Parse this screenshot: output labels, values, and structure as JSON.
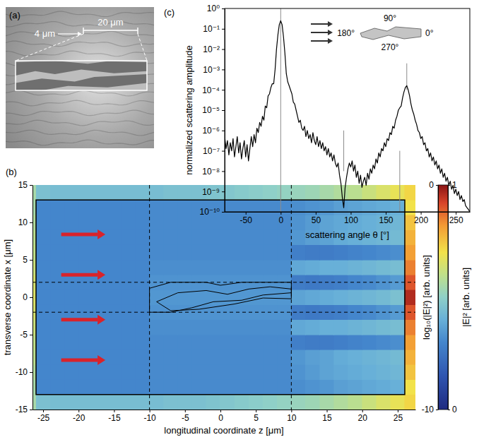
{
  "chart_data": [
    {
      "type": "image",
      "label": "(a)",
      "annotations": [
        "4 μm",
        "20 μm"
      ]
    },
    {
      "type": "heatmap",
      "label": "(b)",
      "xlabel": "longitudinal coordinate z [μm]",
      "ylabel": "transverse coordinate x [μm]",
      "xlim": [
        -26.5,
        27.5
      ],
      "ylim": [
        -15,
        15
      ],
      "xticks": [
        -25,
        -20,
        -15,
        -10,
        -5,
        0,
        5,
        10,
        15,
        20,
        25
      ],
      "yticks": [
        -15,
        -10,
        -5,
        0,
        5,
        10,
        15
      ],
      "x": [
        -27,
        -25,
        -23,
        -21,
        -19,
        -17,
        -15,
        -13,
        -11,
        -9,
        -7,
        -5,
        -3,
        -1,
        1,
        3,
        5,
        7,
        9,
        11,
        13,
        15,
        17,
        19,
        21,
        23,
        25,
        27
      ],
      "y": [
        -14,
        -12,
        -10,
        -8,
        -6,
        -4,
        -2,
        0,
        2,
        4,
        6,
        8,
        10,
        12,
        14
      ],
      "values": [
        [
          -4.5,
          -5.5,
          -5.6,
          -5.6,
          -5.6,
          -5.6,
          -5.6,
          -5.6,
          -5.6,
          -5.6,
          -5.5,
          -5.5,
          -5.5,
          -5.4,
          -5.3,
          -5.2,
          -5.1,
          -5,
          -4.9,
          -4.8,
          -4.7,
          -4.5,
          -4.3,
          -4.1,
          -3.8,
          -3.5,
          -3.2,
          -2.8
        ],
        [
          -4.5,
          -7,
          -7,
          -7,
          -7,
          -7,
          -7,
          -7,
          -7,
          -6.9,
          -6.9,
          -6.9,
          -6.9,
          -6.9,
          -6.9,
          -6.9,
          -6.9,
          -6.9,
          -6.9,
          -6.8,
          -6.7,
          -6.6,
          -6.4,
          -6.3,
          -6.2,
          -6.1,
          -6,
          -3
        ],
        [
          -4.3,
          -7,
          -7,
          -7,
          -7,
          -7,
          -7,
          -7,
          -7,
          -6.9,
          -6.9,
          -6.9,
          -6.9,
          -6.9,
          -6.9,
          -6.9,
          -6.9,
          -6.9,
          -6.9,
          -6.7,
          -6.5,
          -6.3,
          -6.2,
          -6.1,
          -6,
          -5.9,
          -5.8,
          -2.5
        ],
        [
          -4.1,
          -7,
          -7,
          -7,
          -7,
          -7,
          -7,
          -7,
          -7,
          -6.9,
          -6.9,
          -6.9,
          -6.9,
          -6.9,
          -6.9,
          -6.9,
          -6.9,
          -6.9,
          -6.9,
          -6.6,
          -6.4,
          -6.3,
          -6.1,
          -6,
          -5.9,
          -5.8,
          -5.7,
          -2.2
        ],
        [
          -4,
          -7,
          -7,
          -7,
          -7,
          -7,
          -7,
          -7,
          -7,
          -6.9,
          -6.9,
          -6.9,
          -6.9,
          -6.9,
          -6.9,
          -6.9,
          -6.9,
          -6.9,
          -6.9,
          -7.2,
          -7.3,
          -7.3,
          -7.2,
          -7.1,
          -7,
          -6.9,
          -6.8,
          -1.9
        ],
        [
          -3.8,
          -7,
          -7,
          -7,
          -7,
          -7,
          -7,
          -7,
          -7,
          -6.8,
          -6.8,
          -6.8,
          -6.8,
          -6.8,
          -6.8,
          -6.8,
          -6.8,
          -6.8,
          -6.8,
          -6.2,
          -6.1,
          -6,
          -6,
          -5.9,
          -5.8,
          -5.7,
          -5.6,
          -1.5
        ],
        [
          -3.6,
          -7,
          -7,
          -7,
          -7,
          -7,
          -7,
          -7,
          -7,
          -6.7,
          -6.7,
          -6.7,
          -6.7,
          -6.7,
          -6.7,
          -6.7,
          -6.7,
          -6.7,
          -6.7,
          -7.3,
          -7.4,
          -7.3,
          -7.2,
          -7,
          -6.9,
          -6.7,
          -6.5,
          -1
        ],
        [
          -3.5,
          -7,
          -7,
          -7,
          -7,
          -7,
          -7,
          -7,
          -7,
          -6.6,
          -6.6,
          -6.6,
          -6.6,
          -6.6,
          -6.6,
          -6.6,
          -6.6,
          -6.6,
          -6.6,
          -6.3,
          -6.2,
          -6.1,
          -6,
          -5.9,
          -5.8,
          -5.7,
          -5.5,
          -0.4
        ],
        [
          -3.6,
          -7,
          -7,
          -7,
          -7,
          -7,
          -7,
          -7,
          -7,
          -6.7,
          -6.7,
          -6.7,
          -6.7,
          -6.7,
          -6.7,
          -6.7,
          -6.7,
          -6.7,
          -6.7,
          -7.3,
          -7.4,
          -7.3,
          -7.2,
          -7,
          -6.9,
          -6.7,
          -6.5,
          -1
        ],
        [
          -3.8,
          -7,
          -7,
          -7,
          -7,
          -7,
          -7,
          -7,
          -7,
          -6.8,
          -6.8,
          -6.8,
          -6.8,
          -6.8,
          -6.8,
          -6.8,
          -6.8,
          -6.8,
          -6.8,
          -6.2,
          -6.1,
          -6,
          -6,
          -5.9,
          -5.8,
          -5.7,
          -5.6,
          -1.5
        ],
        [
          -4,
          -7,
          -7,
          -7,
          -7,
          -7,
          -7,
          -7,
          -7,
          -6.9,
          -6.9,
          -6.9,
          -6.9,
          -6.9,
          -6.9,
          -6.9,
          -6.9,
          -6.9,
          -6.9,
          -7.2,
          -7.3,
          -7.3,
          -7.2,
          -7.1,
          -7,
          -6.9,
          -6.8,
          -1.9
        ],
        [
          -4.1,
          -7,
          -7,
          -7,
          -7,
          -7,
          -7,
          -7,
          -7,
          -6.9,
          -6.9,
          -6.9,
          -6.9,
          -6.9,
          -6.9,
          -6.9,
          -6.9,
          -6.9,
          -6.9,
          -6.6,
          -6.4,
          -6.3,
          -6.1,
          -6,
          -5.9,
          -5.8,
          -5.7,
          -2.2
        ],
        [
          -4.3,
          -7,
          -7,
          -7,
          -7,
          -7,
          -7,
          -7,
          -7,
          -6.9,
          -6.9,
          -6.9,
          -6.9,
          -6.9,
          -6.9,
          -6.9,
          -6.9,
          -6.9,
          -6.9,
          -6.7,
          -6.5,
          -6.3,
          -6.2,
          -6.1,
          -6,
          -5.9,
          -5.8,
          -2.5
        ],
        [
          -4.5,
          -7,
          -7,
          -7,
          -7,
          -7,
          -7,
          -7,
          -7,
          -6.9,
          -6.9,
          -6.9,
          -6.9,
          -6.9,
          -6.9,
          -6.9,
          -6.9,
          -6.9,
          -6.9,
          -6.8,
          -6.7,
          -6.6,
          -6.4,
          -6.3,
          -6.2,
          -6.1,
          -6,
          -3
        ],
        [
          -4.5,
          -5.5,
          -5.6,
          -5.6,
          -5.6,
          -5.6,
          -5.6,
          -5.6,
          -5.6,
          -5.6,
          -5.5,
          -5.5,
          -5.5,
          -5.4,
          -5.3,
          -5.2,
          -5.1,
          -5,
          -4.9,
          -4.8,
          -4.7,
          -4.5,
          -4.3,
          -4.1,
          -3.8,
          -3.5,
          -3.2,
          -2.8
        ]
      ],
      "colorbar": {
        "label": "log₁₀(|E|²) [arb. units]",
        "range": [
          -10,
          0
        ],
        "ticks": [
          -10,
          0
        ]
      },
      "colorbar2": {
        "label": "|E|² [arb. units]",
        "range": [
          0,
          1
        ],
        "ticks": [
          0,
          1
        ]
      },
      "box": {
        "x": [
          -26,
          26
        ],
        "y": [
          -13,
          13
        ]
      },
      "guide_lines": {
        "x": [
          -10,
          10
        ],
        "y": [
          -2,
          2
        ]
      },
      "outlines": [
        [
          [
            -10,
            -2
          ],
          [
            -10,
            1.2
          ],
          [
            -7,
            2
          ],
          [
            -2,
            2
          ],
          [
            0,
            1.6
          ],
          [
            3,
            2
          ],
          [
            10,
            2
          ],
          [
            10,
            0.6
          ],
          [
            6,
            0.3
          ],
          [
            3,
            -0.4
          ],
          [
            -1,
            -0.6
          ],
          [
            -4,
            -1.4
          ],
          [
            -7,
            -2
          ]
        ],
        [
          [
            -9,
            -0.6
          ],
          [
            -6,
            0.6
          ],
          [
            -2,
            0.9
          ],
          [
            1,
            0.4
          ],
          [
            4,
            1.1
          ],
          [
            7,
            1.4
          ],
          [
            10,
            1.1
          ],
          [
            10,
            -0.2
          ],
          [
            6,
            -0.1
          ],
          [
            2,
            -0.9
          ],
          [
            -3,
            -1.6
          ],
          [
            -7,
            -1.8
          ]
        ]
      ]
    },
    {
      "type": "line",
      "label": "(c)",
      "xlabel": "scattering angle θ [°]",
      "ylabel": "normalized scattering amplitude",
      "log": "y",
      "xlim": [
        -80,
        270
      ],
      "ylim": [
        1e-10,
        1
      ],
      "xticks": [
        -50,
        0,
        50,
        100,
        150,
        200,
        250
      ],
      "yticks": [
        {
          "value": 1,
          "label": "10⁰"
        },
        {
          "value": 0.1,
          "label": "10⁻¹"
        },
        {
          "value": 0.01,
          "label": "10⁻²"
        },
        {
          "value": 0.001,
          "label": "10⁻³"
        },
        {
          "value": 0.0001,
          "label": "10⁻⁴"
        },
        {
          "value": 1e-05,
          "label": "10⁻⁵"
        },
        {
          "value": 1e-06,
          "label": "10⁻⁶"
        },
        {
          "value": 1e-07,
          "label": "10⁻⁷"
        },
        {
          "value": 1e-08,
          "label": "10⁻⁸"
        },
        {
          "value": 1e-09,
          "label": "10⁻⁹"
        },
        {
          "value": 1e-10,
          "label": "10⁻¹⁰"
        }
      ],
      "x": [
        -80,
        -78,
        -76,
        -74,
        -72,
        -70,
        -68,
        -66,
        -64,
        -62,
        -60,
        -58,
        -56,
        -54,
        -52,
        -50,
        -48,
        -46,
        -44,
        -42,
        -40,
        -38,
        -36,
        -34,
        -32,
        -30,
        -28,
        -26,
        -24,
        -22,
        -20,
        -18,
        -16,
        -14,
        -12,
        -10,
        -8,
        -6,
        -4,
        -2,
        0,
        2,
        4,
        6,
        8,
        10,
        12,
        14,
        16,
        18,
        20,
        22,
        24,
        26,
        28,
        30,
        32,
        34,
        36,
        38,
        40,
        42,
        44,
        46,
        48,
        50,
        52,
        54,
        56,
        58,
        60,
        62,
        64,
        66,
        68,
        70,
        72,
        74,
        76,
        78,
        80,
        82,
        84,
        86,
        88,
        90,
        92,
        94,
        96,
        98,
        100,
        102,
        104,
        106,
        108,
        110,
        112,
        114,
        116,
        118,
        120,
        122,
        124,
        126,
        128,
        130,
        132,
        134,
        136,
        138,
        140,
        142,
        144,
        146,
        148,
        150,
        152,
        154,
        156,
        158,
        160,
        162,
        164,
        166,
        168,
        170,
        172,
        174,
        176,
        178,
        180,
        182,
        184,
        186,
        188,
        190,
        192,
        194,
        196,
        198,
        200,
        202,
        204,
        206,
        208,
        210,
        212,
        214,
        216,
        218,
        220,
        222,
        224,
        226,
        228,
        230,
        232,
        234,
        236,
        238,
        240,
        242,
        244,
        246,
        248,
        250,
        252,
        254,
        256,
        258,
        260,
        262,
        264,
        266,
        268,
        270
      ],
      "values": [
        5e-07,
        1.3e-07,
        3.2e-07,
        6.3e-08,
        2.5e-07,
        1e-07,
        4e-07,
        5e-08,
        1.6e-07,
        5e-07,
        7.9e-08,
        2.5e-07,
        4e-08,
        1.3e-07,
        3.2e-07,
        5e-08,
        2e-07,
        3.2e-08,
        1.3e-07,
        5e-07,
        1.6e-07,
        6.3e-07,
        2.5e-07,
        1.3e-06,
        7.9e-07,
        2.5e-06,
        1.6e-06,
        5e-06,
        3.2e-06,
        1.6e-05,
        1.3e-05,
        5e-05,
        6.3e-05,
        0.00013,
        0.0002,
        0.0002,
        0.001,
        0.01,
        0.05,
        0.16,
        0.25,
        0.16,
        0.04,
        0.0063,
        0.00063,
        0.00025,
        0.00016,
        0.0001,
        6.3e-05,
        2.5e-05,
        2e-05,
        1e-05,
        5e-06,
        2.5e-06,
        3.2e-06,
        1.3e-06,
        1e-06,
        1.6e-06,
        5e-07,
        1e-06,
        4e-07,
        6.3e-07,
        2.5e-07,
        7.9e-07,
        3.2e-07,
        2e-07,
        5e-07,
        1.6e-07,
        3.2e-07,
        1.3e-07,
        2.5e-07,
        1e-07,
        1.6e-07,
        6.3e-08,
        1.3e-07,
        5e-08,
        7.9e-08,
        3.2e-08,
        6.3e-08,
        2.5e-08,
        1.6e-08,
        2.5e-08,
        6.3e-09,
        2.5e-09,
        5e-10,
        1.6e-10,
        1.6e-09,
        5e-09,
        1.3e-08,
        2.5e-08,
        1.6e-08,
        3.2e-08,
        1e-08,
        2e-08,
        5e-09,
        1e-08,
        2.5e-09,
        6.3e-09,
        1.6e-09,
        3.2e-09,
        5e-09,
        2e-09,
        7.9e-09,
        4e-09,
        1.3e-08,
        7.9e-09,
        2e-08,
        1.3e-08,
        4e-08,
        2.5e-08,
        7.9e-08,
        5e-08,
        1.3e-07,
        1e-07,
        2.5e-07,
        1.6e-07,
        4e-07,
        3.2e-07,
        7.9e-07,
        6.3e-07,
        1.6e-06,
        1.3e-06,
        3.2e-06,
        5e-06,
        1e-05,
        1.3e-05,
        1.6e-05,
        4e-05,
        7.9e-05,
        0.00013,
        0.00016,
        0.0001,
        5e-05,
        2e-05,
        1e-05,
        6.3e-06,
        3.2e-06,
        2e-06,
        1e-06,
        7.9e-07,
        4e-07,
        5e-07,
        2e-07,
        2.5e-07,
        1e-07,
        1.3e-07,
        5e-08,
        7.9e-08,
        3.2e-08,
        5e-08,
        2e-08,
        3.2e-08,
        1.3e-08,
        2e-08,
        7.9e-09,
        1.3e-08,
        5e-09,
        7.9e-09,
        3.2e-09,
        5e-09,
        2e-09,
        3.2e-09,
        1.3e-09,
        2e-09,
        7.9e-10,
        1.3e-09,
        6.3e-10,
        1e-09,
        4e-10,
        6.3e-10,
        3.2e-10,
        4e-10,
        2e-10,
        1.6e-10,
        1.3e-10,
        1e-10
      ],
      "color": "#000000",
      "reference_lines": [
        {
          "x": 0,
          "y": [
            1e-10,
            1
          ]
        },
        {
          "x": 90,
          "y": [
            1e-08,
            1e-06
          ]
        },
        {
          "x": 170,
          "y": [
            1e-10,
            1e-07
          ]
        },
        {
          "x": 180,
          "y": [
            0.0001,
            0.002
          ]
        }
      ],
      "annotations": [
        "90°",
        "180°",
        "0°",
        "270°"
      ]
    }
  ]
}
